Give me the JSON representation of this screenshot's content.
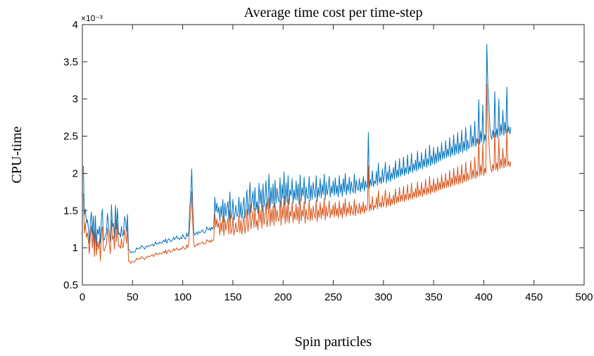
{
  "chart_data": {
    "type": "line",
    "title": "Average time cost per time-step",
    "xlabel": "Spin particles",
    "ylabel": "CPU-time",
    "y_exponent_label": "×10⁻³",
    "xlim": [
      0,
      500
    ],
    "ylim": [
      0.5,
      4
    ],
    "xticks": [
      0,
      50,
      100,
      150,
      200,
      250,
      300,
      350,
      400,
      450,
      500
    ],
    "yticks": [
      0.5,
      1,
      1.5,
      2,
      2.5,
      3,
      3.5,
      4
    ],
    "grid": false,
    "legend": "none",
    "x_start": 1,
    "x_step": 1,
    "series": [
      {
        "color": "#0072BD",
        "values": [
          2.1,
          1.44,
          1.52,
          1.33,
          1.38,
          1.27,
          1.06,
          1.35,
          1.48,
          1.17,
          1.43,
          1.03,
          1.43,
          1.02,
          1.25,
          1.18,
          1.29,
          1.06,
          1.4,
          1.52,
          1.1,
          1.11,
          1.17,
          1.2,
          1.46,
          1.32,
          1.2,
          1.08,
          1.58,
          1.28,
          1.33,
          1.13,
          1.57,
          1.25,
          1.53,
          1.18,
          1.2,
          1.14,
          1.29,
          1.16,
          1.18,
          1.42,
          1.36,
          1.22,
          1.45,
          0.97,
          0.97,
          0.93,
          0.94,
          0.95,
          0.94,
          0.94,
          0.96,
          1.0,
          0.98,
          0.99,
          1.0,
          0.99,
          1.03,
          1.02,
          1.0,
          0.98,
          1.01,
          1.02,
          1.01,
          1.03,
          1.02,
          1.03,
          1.04,
          1.05,
          1.02,
          1.04,
          1.08,
          1.05,
          1.06,
          1.05,
          1.08,
          1.07,
          1.06,
          1.08,
          1.1,
          1.08,
          1.12,
          1.06,
          1.1,
          1.12,
          1.11,
          1.08,
          1.09,
          1.11,
          1.14,
          1.11,
          1.13,
          1.16,
          1.12,
          1.13,
          1.11,
          1.14,
          1.12,
          1.18,
          1.15,
          1.12,
          1.12,
          1.2,
          1.15,
          1.21,
          1.53,
          1.71,
          2.06,
          1.55,
          1.21,
          1.17,
          1.19,
          1.21,
          1.18,
          1.22,
          1.2,
          1.21,
          1.23,
          1.24,
          1.2,
          1.2,
          1.22,
          1.28,
          1.25,
          1.24,
          1.27,
          1.23,
          1.28,
          1.25,
          1.28,
          1.68,
          1.48,
          1.6,
          1.47,
          1.55,
          1.36,
          1.56,
          1.42,
          1.65,
          1.35,
          1.6,
          1.43,
          1.54,
          1.62,
          1.38,
          1.75,
          1.39,
          1.44,
          1.65,
          1.37,
          1.45,
          1.57,
          1.42,
          1.44,
          1.68,
          1.41,
          1.61,
          1.39,
          1.55,
          1.68,
          1.4,
          1.54,
          1.78,
          1.44,
          1.59,
          1.88,
          1.47,
          1.63,
          1.76,
          1.5,
          1.81,
          1.51,
          1.62,
          1.46,
          1.87,
          1.59,
          1.78,
          1.49,
          1.86,
          1.55,
          1.68,
          1.9,
          1.52,
          1.64,
          1.99,
          1.53,
          1.81,
          1.59,
          1.86,
          1.54,
          1.91,
          1.6,
          1.8,
          1.66,
          1.62,
          1.94,
          1.55,
          1.85,
          1.67,
          2.02,
          1.57,
          1.87,
          1.61,
          1.97,
          1.58,
          1.78,
          1.7,
          1.93,
          1.6,
          1.78,
          1.65,
          1.9,
          1.64,
          1.86,
          1.58,
          1.98,
          1.63,
          1.81,
          1.7,
          1.95,
          1.59,
          1.82,
          1.68,
          1.66,
          1.96,
          1.63,
          1.84,
          1.65,
          1.88,
          1.75,
          1.67,
          1.97,
          1.62,
          1.81,
          1.69,
          1.93,
          1.67,
          1.85,
          1.72,
          1.99,
          1.65,
          1.88,
          1.71,
          1.8,
          1.96,
          1.68,
          1.83,
          1.73,
          1.9,
          1.7,
          1.94,
          1.72,
          1.84,
          1.68,
          1.97,
          1.74,
          1.86,
          1.69,
          1.93,
          1.75,
          2.0,
          1.71,
          1.86,
          1.76,
          1.95,
          1.72,
          1.89,
          1.78,
          1.74,
          1.99,
          1.73,
          1.91,
          1.8,
          1.77,
          1.93,
          1.75,
          1.88,
          1.79,
          1.96,
          1.76,
          1.9,
          1.81,
          1.85,
          2.55,
          1.8,
          1.92,
          1.83,
          2.04,
          1.82,
          1.9,
          1.86,
          2.03,
          1.84,
          2.14,
          1.87,
          1.95,
          1.86,
          2.06,
          1.88,
          1.98,
          2.15,
          1.87,
          2.02,
          1.9,
          2.11,
          1.89,
          2.01,
          1.93,
          2.08,
          1.92,
          2.17,
          1.94,
          2.05,
          1.95,
          2.2,
          1.96,
          2.07,
          1.98,
          2.22,
          1.97,
          2.08,
          2.0,
          2.25,
          1.99,
          2.1,
          2.02,
          2.27,
          2.01,
          2.13,
          2.04,
          2.18,
          2.03,
          2.3,
          2.05,
          2.16,
          2.07,
          2.28,
          2.06,
          2.19,
          2.09,
          2.33,
          2.08,
          2.2,
          2.11,
          2.38,
          2.1,
          2.24,
          2.13,
          2.35,
          2.12,
          2.27,
          2.14,
          2.36,
          2.16,
          2.29,
          2.17,
          2.41,
          2.19,
          2.3,
          2.2,
          2.44,
          2.21,
          2.33,
          2.23,
          2.48,
          2.22,
          2.36,
          2.25,
          2.52,
          2.24,
          2.4,
          2.27,
          2.55,
          2.26,
          2.41,
          2.29,
          2.58,
          2.28,
          2.43,
          2.31,
          2.62,
          2.3,
          2.45,
          2.33,
          2.38,
          2.65,
          2.35,
          2.5,
          2.37,
          2.7,
          2.36,
          2.47,
          2.4,
          2.99,
          2.39,
          2.57,
          2.42,
          2.92,
          2.4,
          2.52,
          2.44,
          3.74,
          3.2,
          2.95,
          2.64,
          2.5,
          2.46,
          2.58,
          2.48,
          3.1,
          2.49,
          2.6,
          2.47,
          3.0,
          2.5,
          2.66,
          2.52,
          2.85,
          2.51,
          2.69,
          2.54,
          3.16,
          2.55,
          2.63,
          2.53,
          2.62
        ]
      },
      {
        "color": "#D95319",
        "values": [
          1.73,
          1.2,
          1.33,
          1.14,
          1.2,
          1.08,
          0.92,
          1.18,
          1.29,
          1.0,
          1.24,
          0.88,
          1.24,
          0.9,
          1.08,
          0.98,
          1.12,
          0.82,
          1.22,
          1.28,
          0.97,
          0.96,
          1.02,
          1.04,
          1.27,
          1.15,
          1.04,
          0.92,
          1.38,
          1.11,
          1.16,
          0.98,
          1.38,
          1.08,
          1.33,
          1.02,
          1.03,
          0.99,
          1.12,
          1.0,
          1.02,
          1.24,
          1.18,
          1.06,
          1.28,
          0.82,
          0.82,
          0.79,
          0.8,
          0.82,
          0.81,
          0.81,
          0.83,
          0.86,
          0.84,
          0.85,
          0.86,
          0.85,
          0.88,
          0.87,
          0.86,
          0.84,
          0.87,
          0.88,
          0.87,
          0.89,
          0.88,
          0.89,
          0.9,
          0.91,
          0.88,
          0.9,
          0.93,
          0.91,
          0.92,
          0.91,
          0.93,
          0.92,
          0.92,
          0.93,
          0.95,
          0.93,
          0.97,
          0.92,
          0.95,
          0.97,
          0.96,
          0.94,
          0.95,
          0.96,
          0.99,
          0.96,
          0.98,
          1.0,
          0.97,
          0.98,
          0.97,
          0.99,
          0.98,
          1.02,
          1.0,
          0.98,
          0.98,
          1.04,
          1.0,
          1.05,
          1.31,
          1.48,
          1.76,
          1.34,
          1.05,
          1.01,
          1.03,
          1.05,
          1.03,
          1.06,
          1.05,
          1.06,
          1.07,
          1.08,
          1.05,
          1.05,
          1.06,
          1.11,
          1.09,
          1.08,
          1.1,
          1.07,
          1.11,
          1.09,
          1.11,
          1.46,
          1.28,
          1.39,
          1.27,
          1.34,
          1.17,
          1.35,
          1.22,
          1.42,
          1.16,
          1.38,
          1.23,
          1.33,
          1.39,
          1.18,
          1.5,
          1.19,
          1.23,
          1.41,
          1.17,
          1.24,
          1.34,
          1.21,
          1.23,
          1.43,
          1.2,
          1.37,
          1.18,
          1.32,
          1.43,
          1.19,
          1.31,
          1.51,
          1.22,
          1.35,
          1.58,
          1.25,
          1.38,
          1.49,
          1.27,
          1.53,
          1.28,
          1.37,
          1.24,
          1.57,
          1.34,
          1.5,
          1.26,
          1.57,
          1.31,
          1.42,
          1.6,
          1.28,
          1.38,
          1.67,
          1.29,
          1.52,
          1.34,
          1.56,
          1.3,
          1.6,
          1.35,
          1.51,
          1.39,
          1.36,
          1.63,
          1.3,
          1.55,
          1.4,
          1.69,
          1.32,
          1.56,
          1.35,
          1.65,
          1.33,
          1.49,
          1.42,
          1.61,
          1.34,
          1.49,
          1.38,
          1.59,
          1.37,
          1.55,
          1.32,
          1.65,
          1.36,
          1.51,
          1.42,
          1.62,
          1.33,
          1.52,
          1.4,
          1.38,
          1.64,
          1.36,
          1.53,
          1.37,
          1.56,
          1.46,
          1.39,
          1.64,
          1.35,
          1.51,
          1.41,
          1.61,
          1.39,
          1.54,
          1.43,
          1.66,
          1.37,
          1.56,
          1.42,
          1.49,
          1.63,
          1.4,
          1.52,
          1.44,
          1.58,
          1.41,
          1.61,
          1.43,
          1.53,
          1.4,
          1.63,
          1.44,
          1.54,
          1.4,
          1.6,
          1.45,
          1.66,
          1.42,
          1.54,
          1.46,
          1.62,
          1.43,
          1.57,
          1.48,
          1.44,
          1.65,
          1.43,
          1.58,
          1.49,
          1.46,
          1.6,
          1.45,
          1.56,
          1.48,
          1.62,
          1.46,
          1.57,
          1.5,
          1.53,
          2.1,
          1.49,
          1.59,
          1.51,
          1.69,
          1.5,
          1.57,
          1.54,
          1.68,
          1.52,
          1.77,
          1.55,
          1.61,
          1.54,
          1.7,
          1.55,
          1.63,
          1.78,
          1.54,
          1.67,
          1.57,
          1.74,
          1.56,
          1.66,
          1.59,
          1.71,
          1.58,
          1.79,
          1.6,
          1.69,
          1.61,
          1.81,
          1.62,
          1.71,
          1.63,
          1.83,
          1.62,
          1.72,
          1.65,
          1.85,
          1.64,
          1.73,
          1.66,
          1.87,
          1.65,
          1.75,
          1.68,
          1.8,
          1.67,
          1.89,
          1.69,
          1.78,
          1.7,
          1.88,
          1.69,
          1.8,
          1.72,
          1.92,
          1.71,
          1.81,
          1.73,
          1.96,
          1.72,
          1.84,
          1.75,
          1.93,
          1.74,
          1.86,
          1.76,
          1.94,
          1.77,
          1.88,
          1.78,
          1.98,
          1.79,
          1.89,
          1.8,
          2.0,
          1.81,
          1.91,
          1.82,
          2.04,
          1.82,
          1.94,
          1.84,
          2.07,
          1.84,
          1.97,
          1.86,
          2.09,
          1.85,
          1.98,
          1.87,
          2.12,
          1.87,
          1.99,
          1.89,
          2.15,
          1.89,
          2.01,
          1.91,
          1.95,
          2.17,
          1.92,
          2.05,
          1.94,
          2.22,
          1.93,
          2.03,
          1.96,
          2.46,
          1.96,
          2.11,
          1.98,
          2.4,
          1.97,
          2.07,
          2.0,
          3.2,
          2.75,
          2.45,
          2.2,
          2.06,
          2.02,
          2.12,
          2.04,
          2.55,
          2.05,
          2.14,
          2.03,
          2.47,
          2.06,
          2.19,
          2.08,
          2.34,
          2.07,
          2.21,
          2.09,
          2.6,
          2.1,
          2.16,
          2.09,
          2.16
        ]
      }
    ]
  }
}
